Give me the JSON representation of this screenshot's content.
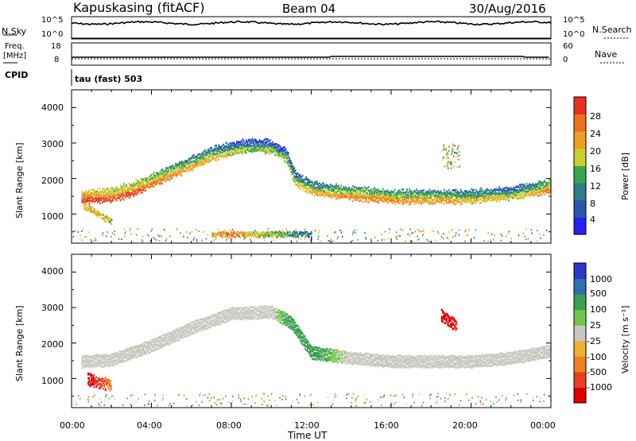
{
  "header": {
    "station": "Kapuskasing (fitACF)",
    "beam": "Beam 04",
    "date": "30/Aug/2016"
  },
  "noise_panel": {
    "left_label": "N.Sky",
    "left_ticks": [
      "10^5",
      "10^0"
    ],
    "right_label": "N.Search",
    "right_ticks": [
      "10^5",
      "10^0"
    ]
  },
  "freq_panel": {
    "left_label_top": "Freq.",
    "left_label_unit": "[MHz]",
    "left_ticks": [
      "18",
      "8"
    ],
    "right_label": "Nave",
    "right_ticks": [
      "60",
      "0"
    ]
  },
  "cpid": {
    "label": "CPID",
    "mode": "tau (fast) 503"
  },
  "xaxis": {
    "label": "Time UT",
    "ticks": [
      "00:00",
      "04:00",
      "08:00",
      "12:00",
      "16:00",
      "20:00",
      "00:00"
    ]
  },
  "power_panel": {
    "ylabel": "Slant Range [km]",
    "yticks": [
      "4000",
      "3000",
      "2000",
      "1000"
    ],
    "colorbar_label": "Power [dB]",
    "colorbar_ticks": [
      "28",
      "24",
      "20",
      "16",
      "12",
      "8",
      "4"
    ],
    "colors": [
      "#2020ff",
      "#2a55b0",
      "#2d7d86",
      "#3aa84a",
      "#c8d030",
      "#f0a020",
      "#f07020",
      "#e83020"
    ]
  },
  "velocity_panel": {
    "ylabel": "Slant Range [km]",
    "yticks": [
      "4000",
      "3000",
      "2000",
      "1000"
    ],
    "colorbar_label": "Velocity [m s⁻¹]",
    "colorbar_ticks": [
      "1000",
      "500",
      "100",
      "25",
      "-25",
      "-100",
      "-500",
      "-1000"
    ],
    "colors": [
      "#2838c8",
      "#3070b0",
      "#3aa050",
      "#70c848",
      "#c8c8c0",
      "#f0b030",
      "#f08020",
      "#e84020",
      "#e00000"
    ]
  },
  "chart_data": [
    {
      "type": "heatmap",
      "title": "Power [dB]",
      "xlabel": "Time UT",
      "ylabel": "Slant Range [km]",
      "xlim": [
        "00:00",
        "24:00"
      ],
      "ylim": [
        180,
        4500
      ],
      "clim": [
        0,
        32
      ],
      "bands": [
        {
          "t": [
            0.5,
            1.0,
            2.0,
            3.0,
            4.0,
            5.0,
            6.0,
            7.0,
            8.0,
            9.0,
            10.0,
            10.7,
            11.2,
            12.0,
            13.0,
            14.0,
            15.0,
            16.0,
            17.0,
            18.0,
            19.0,
            20.0,
            21.0,
            22.0,
            23.0,
            24.0
          ],
          "range_km": [
            1500,
            1520,
            1550,
            1700,
            1950,
            2200,
            2450,
            2700,
            2850,
            2950,
            2900,
            2700,
            2000,
            1750,
            1650,
            1600,
            1550,
            1500,
            1500,
            1500,
            1500,
            1500,
            1550,
            1600,
            1700,
            1800
          ],
          "power_db": [
            26,
            24,
            22,
            22,
            20,
            18,
            16,
            14,
            12,
            10,
            10,
            10,
            12,
            14,
            16,
            18,
            18,
            18,
            16,
            16,
            16,
            14,
            14,
            12,
            14,
            20
          ]
        },
        {
          "t": [
            0.6,
            1.0,
            1.5,
            2.0
          ],
          "range_km": [
            1250,
            1150,
            950,
            800
          ],
          "power_db": [
            20,
            22,
            20,
            16
          ]
        },
        {
          "t": [
            7.0,
            8.0,
            9.0,
            10.0,
            11.0,
            12.0
          ],
          "range_km": [
            450,
            450,
            450,
            450,
            450,
            450
          ],
          "power_db": [
            20,
            24,
            20,
            16,
            12,
            8
          ]
        }
      ]
    },
    {
      "type": "heatmap",
      "title": "Velocity [m s⁻¹]",
      "xlabel": "Time UT",
      "ylabel": "Slant Range [km]",
      "xlim": [
        "00:00",
        "24:00"
      ],
      "ylim": [
        180,
        4500
      ],
      "clim": [
        -1000,
        1000
      ],
      "bands": [
        {
          "t": [
            0.5,
            2.0,
            4.0,
            6.0,
            8.0,
            10.0,
            11.0,
            12.0,
            14.0,
            16.0,
            18.0,
            20.0,
            22.0,
            24.0
          ],
          "range_km": [
            1500,
            1550,
            1950,
            2450,
            2850,
            2900,
            2600,
            1750,
            1600,
            1500,
            1500,
            1500,
            1600,
            1800
          ],
          "velocity_ms": [
            0,
            0,
            0,
            0,
            0,
            0,
            100,
            100,
            0,
            0,
            0,
            0,
            0,
            0
          ]
        },
        {
          "t": [
            0.8,
            1.5,
            2.0
          ],
          "range_km": [
            1000,
            900,
            800
          ],
          "velocity_ms": [
            -1000,
            -500,
            -100
          ]
        },
        {
          "t": [
            18.5,
            19.0,
            19.3
          ],
          "range_km": [
            2800,
            2600,
            2500
          ],
          "velocity_ms": [
            -1000,
            -1000,
            -500
          ]
        }
      ]
    }
  ]
}
